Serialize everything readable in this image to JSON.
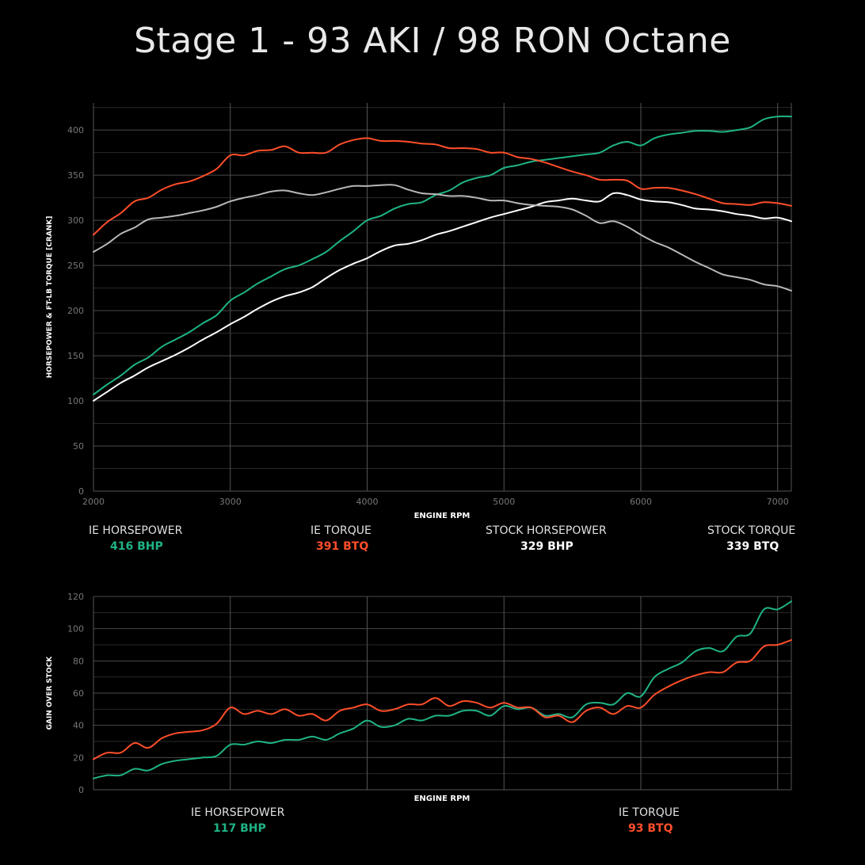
{
  "title": "Stage 1 - 93 AKI / 98 RON Octane",
  "colors": {
    "ie_horsepower": "#1fb386",
    "ie_torque": "#ff4e2a",
    "stock_horsepower": "#ffffff",
    "stock_torque": "#b8b8b8",
    "grid": "#3a3a3a",
    "tick": "#777777"
  },
  "main_legend": [
    {
      "label": "IE HORSEPOWER",
      "value": "416 BHP",
      "color": "#1fb386"
    },
    {
      "label": "IE TORQUE",
      "value": "391 BTQ",
      "color": "#ff4e2a"
    },
    {
      "label": "STOCK HORSEPOWER",
      "value": "329 BHP",
      "color": "#ffffff"
    },
    {
      "label": "STOCK TORQUE",
      "value": "339 BTQ",
      "color": "#ffffff"
    }
  ],
  "gain_legend": [
    {
      "label": "IE HORSEPOWER",
      "value": "117 BHP",
      "color": "#1fb386"
    },
    {
      "label": "IE TORQUE",
      "value": "93 BTQ",
      "color": "#ff4e2a"
    }
  ],
  "chart_data": [
    {
      "type": "line",
      "xlabel": "ENGINE RPM",
      "ylabel": "HORSEPOWER & FT-LB TORQUE [CRANK]",
      "xlim": [
        2000,
        7100
      ],
      "ylim": [
        0,
        430
      ],
      "xticks": [
        2000,
        3000,
        4000,
        5000,
        6000,
        7000
      ],
      "yticks": [
        0,
        50,
        100,
        150,
        200,
        250,
        300,
        350,
        400
      ],
      "grid": true,
      "series": [
        {
          "name": "IE HORSEPOWER",
          "color": "#1fb386",
          "x": [
            2000,
            2100,
            2200,
            2300,
            2400,
            2500,
            2600,
            2700,
            2800,
            2900,
            3000,
            3100,
            3200,
            3300,
            3400,
            3500,
            3600,
            3700,
            3800,
            3900,
            4000,
            4100,
            4200,
            4300,
            4400,
            4500,
            4600,
            4700,
            4800,
            4900,
            5000,
            5100,
            5200,
            5300,
            5400,
            5500,
            5600,
            5700,
            5800,
            5900,
            6000,
            6100,
            6200,
            6300,
            6400,
            6500,
            6600,
            6700,
            6800,
            6900,
            7000,
            7100
          ],
          "y": [
            107,
            118,
            128,
            140,
            148,
            160,
            168,
            176,
            186,
            195,
            211,
            220,
            230,
            238,
            246,
            250,
            257,
            265,
            277,
            288,
            300,
            305,
            313,
            318,
            320,
            328,
            333,
            342,
            347,
            350,
            358,
            361,
            365,
            367,
            369,
            371,
            373,
            375,
            383,
            387,
            383,
            391,
            395,
            397,
            399,
            399,
            398,
            400,
            403,
            412,
            415,
            415
          ]
        },
        {
          "name": "IE TORQUE",
          "color": "#ff4e2a",
          "x": [
            2000,
            2100,
            2200,
            2300,
            2400,
            2500,
            2600,
            2700,
            2800,
            2900,
            3000,
            3100,
            3200,
            3300,
            3400,
            3500,
            3600,
            3700,
            3800,
            3900,
            4000,
            4100,
            4200,
            4300,
            4400,
            4500,
            4600,
            4700,
            4800,
            4900,
            5000,
            5100,
            5200,
            5300,
            5400,
            5500,
            5600,
            5700,
            5800,
            5900,
            6000,
            6100,
            6200,
            6300,
            6400,
            6500,
            6600,
            6700,
            6800,
            6900,
            7000,
            7100
          ],
          "y": [
            284,
            298,
            308,
            321,
            325,
            334,
            340,
            343,
            349,
            357,
            372,
            372,
            377,
            378,
            382,
            375,
            375,
            375,
            384,
            389,
            391,
            388,
            388,
            387,
            385,
            384,
            380,
            380,
            379,
            375,
            375,
            370,
            368,
            364,
            359,
            354,
            350,
            345,
            345,
            344,
            335,
            336,
            336,
            333,
            329,
            324,
            319,
            318,
            317,
            320,
            319,
            316
          ]
        },
        {
          "name": "STOCK HORSEPOWER",
          "color": "#ffffff",
          "x": [
            2000,
            2100,
            2200,
            2300,
            2400,
            2500,
            2600,
            2700,
            2800,
            2900,
            3000,
            3100,
            3200,
            3300,
            3400,
            3500,
            3600,
            3700,
            3800,
            3900,
            4000,
            4100,
            4200,
            4300,
            4400,
            4500,
            4600,
            4700,
            4800,
            4900,
            5000,
            5100,
            5200,
            5300,
            5400,
            5500,
            5600,
            5700,
            5800,
            5900,
            6000,
            6100,
            6200,
            6300,
            6400,
            6500,
            6600,
            6700,
            6800,
            6900,
            7000,
            7100
          ],
          "y": [
            100,
            110,
            120,
            128,
            137,
            144,
            151,
            159,
            168,
            176,
            185,
            193,
            202,
            210,
            216,
            220,
            226,
            236,
            245,
            252,
            258,
            266,
            272,
            274,
            278,
            284,
            288,
            293,
            298,
            303,
            307,
            311,
            315,
            320,
            322,
            324,
            322,
            321,
            330,
            328,
            323,
            321,
            320,
            317,
            313,
            312,
            310,
            307,
            305,
            302,
            303,
            299
          ]
        },
        {
          "name": "STOCK TORQUE",
          "color": "#b8b8b8",
          "x": [
            2000,
            2100,
            2200,
            2300,
            2400,
            2500,
            2600,
            2700,
            2800,
            2900,
            3000,
            3100,
            3200,
            3300,
            3400,
            3500,
            3600,
            3700,
            3800,
            3900,
            4000,
            4100,
            4200,
            4300,
            4400,
            4500,
            4600,
            4700,
            4800,
            4900,
            5000,
            5100,
            5200,
            5300,
            5400,
            5500,
            5600,
            5700,
            5800,
            5900,
            6000,
            6100,
            6200,
            6300,
            6400,
            6500,
            6600,
            6700,
            6800,
            6900,
            7000,
            7100
          ],
          "y": [
            265,
            274,
            285,
            292,
            301,
            303,
            305,
            308,
            311,
            315,
            321,
            325,
            328,
            332,
            333,
            330,
            328,
            331,
            335,
            338,
            338,
            339,
            339,
            334,
            330,
            329,
            327,
            327,
            325,
            322,
            322,
            319,
            317,
            316,
            315,
            312,
            305,
            297,
            299,
            293,
            284,
            276,
            270,
            262,
            254,
            247,
            240,
            237,
            234,
            229,
            227,
            222
          ]
        }
      ]
    },
    {
      "type": "line",
      "xlabel": "ENGINE RPM",
      "ylabel": "GAIN OVER STOCK",
      "xlim": [
        2000,
        7100
      ],
      "ylim": [
        0,
        120
      ],
      "yticks": [
        0,
        20,
        40,
        60,
        80,
        100,
        120
      ],
      "grid": true,
      "series": [
        {
          "name": "IE HORSEPOWER",
          "color": "#1fb386",
          "x": [
            2000,
            2100,
            2200,
            2300,
            2400,
            2500,
            2600,
            2700,
            2800,
            2900,
            3000,
            3100,
            3200,
            3300,
            3400,
            3500,
            3600,
            3700,
            3800,
            3900,
            4000,
            4100,
            4200,
            4300,
            4400,
            4500,
            4600,
            4700,
            4800,
            4900,
            5000,
            5100,
            5200,
            5300,
            5400,
            5500,
            5600,
            5700,
            5800,
            5900,
            6000,
            6100,
            6200,
            6300,
            6400,
            6500,
            6600,
            6700,
            6800,
            6900,
            7000,
            7100
          ],
          "y": [
            7,
            9,
            9,
            13,
            12,
            16,
            18,
            19,
            20,
            21,
            28,
            28,
            30,
            29,
            31,
            31,
            33,
            31,
            35,
            38,
            43,
            39,
            40,
            44,
            43,
            46,
            46,
            49,
            49,
            46,
            52,
            50,
            51,
            46,
            47,
            45,
            53,
            54,
            53,
            60,
            58,
            70,
            75,
            79,
            86,
            88,
            86,
            95,
            97,
            112,
            112,
            117
          ]
        },
        {
          "name": "IE TORQUE",
          "color": "#ff4e2a",
          "x": [
            2000,
            2100,
            2200,
            2300,
            2400,
            2500,
            2600,
            2700,
            2800,
            2900,
            3000,
            3100,
            3200,
            3300,
            3400,
            3500,
            3600,
            3700,
            3800,
            3900,
            4000,
            4100,
            4200,
            4300,
            4400,
            4500,
            4600,
            4700,
            4800,
            4900,
            5000,
            5100,
            5200,
            5300,
            5400,
            5500,
            5600,
            5700,
            5800,
            5900,
            6000,
            6100,
            6200,
            6300,
            6400,
            6500,
            6600,
            6700,
            6800,
            6900,
            7000,
            7100
          ],
          "y": [
            19,
            23,
            23,
            29,
            26,
            32,
            35,
            36,
            37,
            41,
            51,
            47,
            49,
            47,
            50,
            46,
            47,
            43,
            49,
            51,
            53,
            49,
            50,
            53,
            53,
            57,
            52,
            55,
            54,
            51,
            54,
            51,
            51,
            45,
            46,
            42,
            49,
            51,
            47,
            52,
            51,
            59,
            64,
            68,
            71,
            73,
            73,
            79,
            80,
            89,
            90,
            93
          ]
        }
      ]
    }
  ]
}
